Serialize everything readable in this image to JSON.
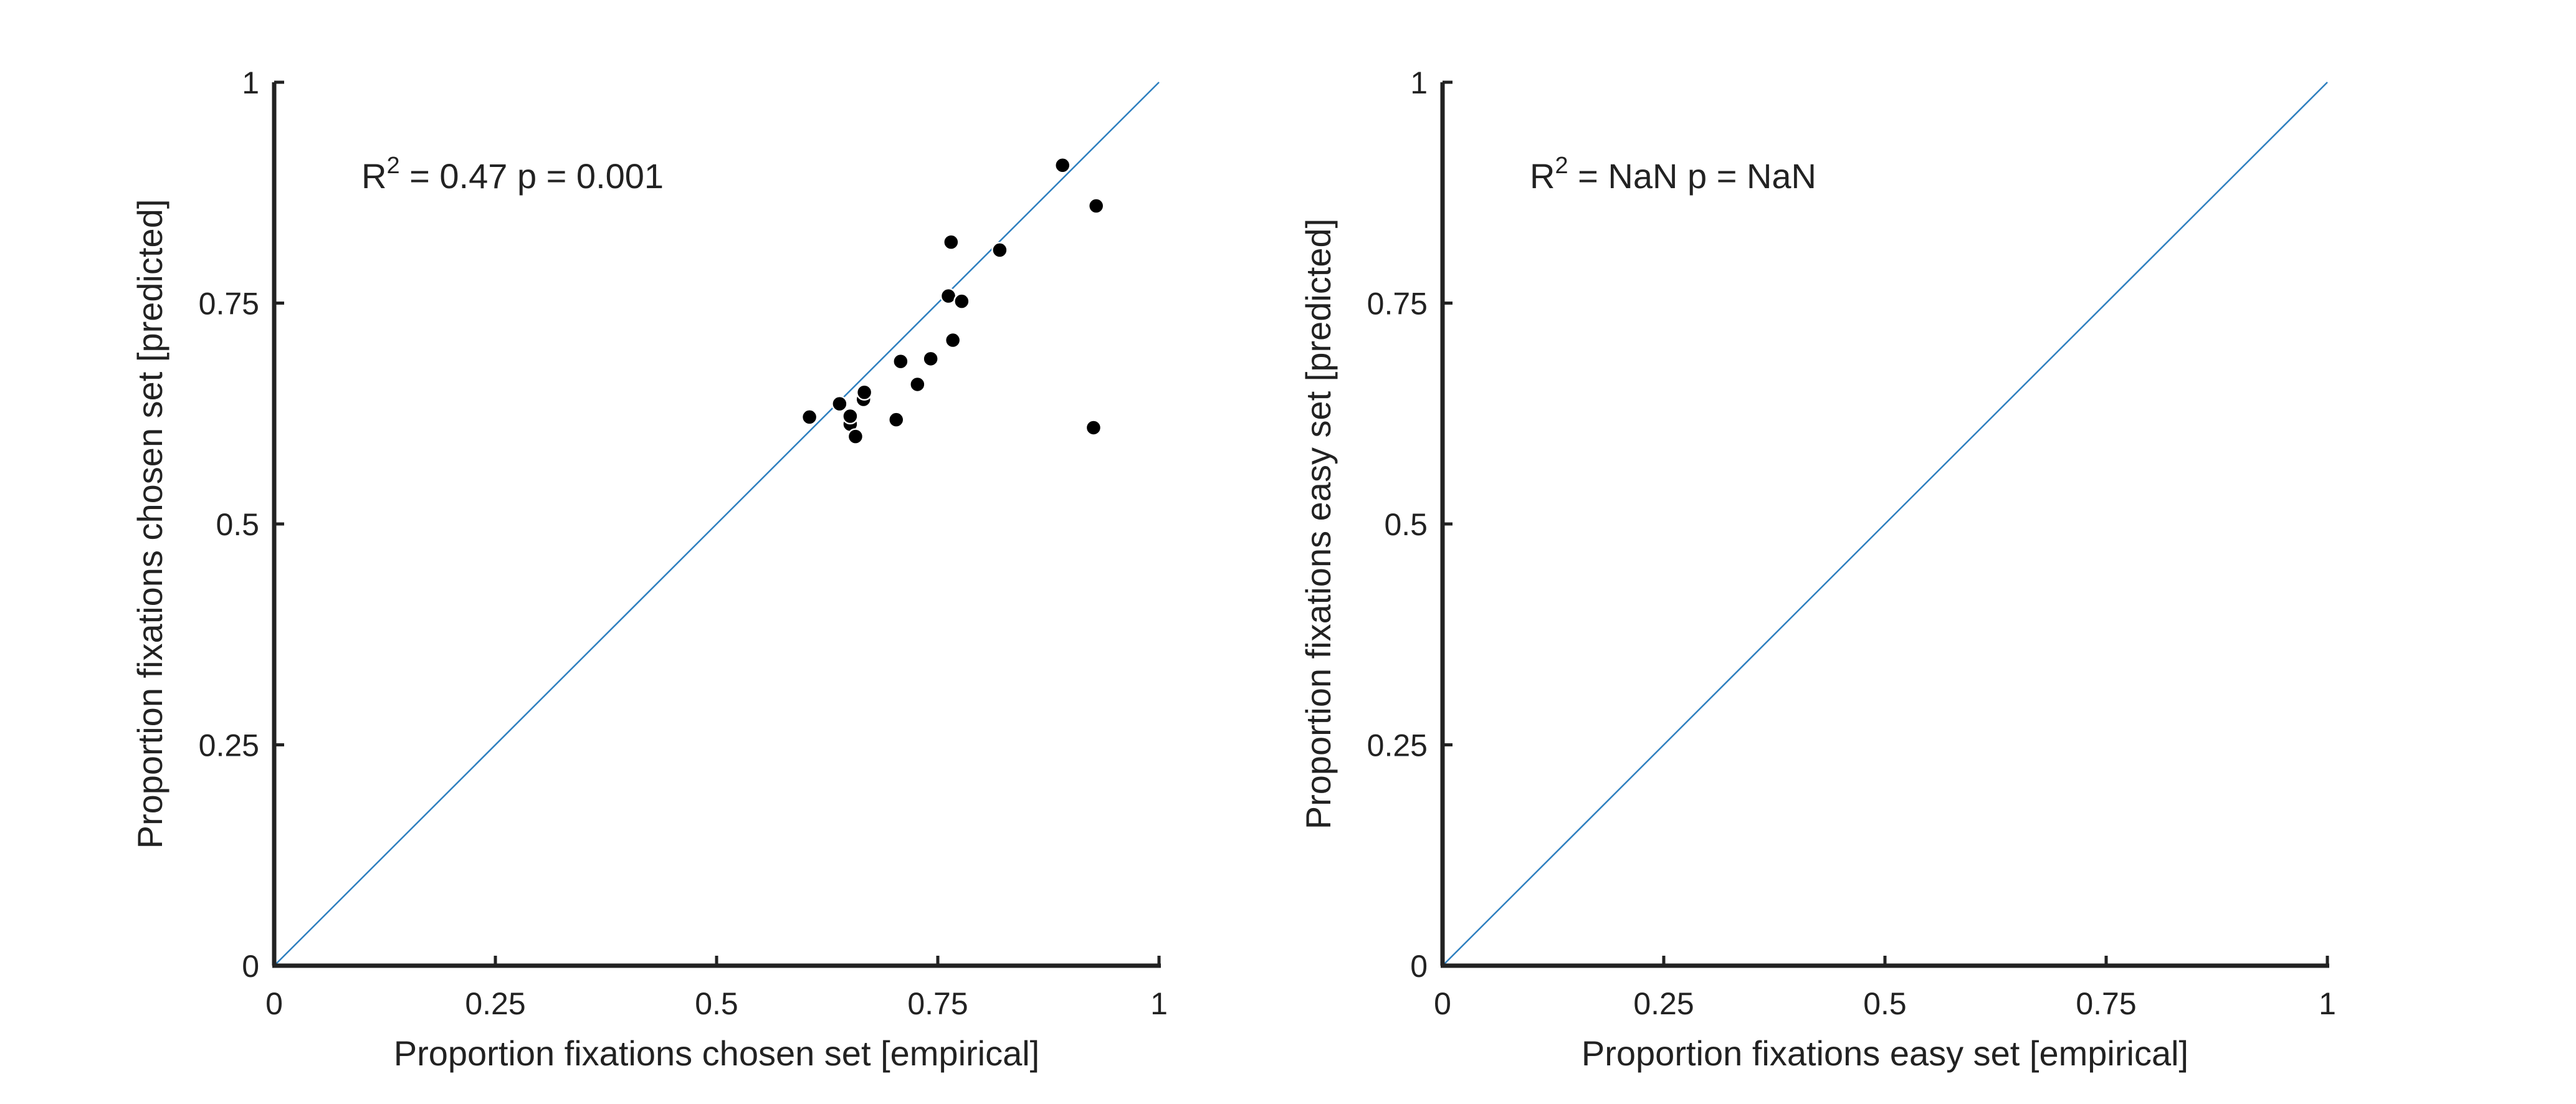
{
  "figure_colors": {
    "axis": "#222222",
    "identity_line": "#2e7fbf",
    "point": "#000000"
  },
  "chart_data": [
    {
      "type": "scatter",
      "title": "",
      "xlabel": "Proportion fixations chosen set [empirical]",
      "ylabel": "Proportion fixations chosen set [predicted]",
      "xlim": [
        0,
        1
      ],
      "ylim": [
        0,
        1
      ],
      "xticks": [
        0,
        0.25,
        0.5,
        0.75,
        1
      ],
      "yticks": [
        0,
        0.25,
        0.5,
        0.75,
        1
      ],
      "xtick_labels": [
        "0",
        "0.25",
        "0.5",
        "0.75",
        "1"
      ],
      "ytick_labels": [
        "0",
        "0.25",
        "0.5",
        "0.75",
        "1"
      ],
      "grid": false,
      "identity_line": true,
      "annotation": {
        "r2_prefix": "R",
        "r2_exp": "2",
        "rest": " = 0.47 p = 0.001"
      },
      "points": [
        {
          "x": 0.605,
          "y": 0.621
        },
        {
          "x": 0.639,
          "y": 0.636
        },
        {
          "x": 0.651,
          "y": 0.613
        },
        {
          "x": 0.651,
          "y": 0.622
        },
        {
          "x": 0.657,
          "y": 0.599
        },
        {
          "x": 0.666,
          "y": 0.641
        },
        {
          "x": 0.667,
          "y": 0.649
        },
        {
          "x": 0.703,
          "y": 0.618
        },
        {
          "x": 0.708,
          "y": 0.684
        },
        {
          "x": 0.727,
          "y": 0.658
        },
        {
          "x": 0.742,
          "y": 0.687
        },
        {
          "x": 0.762,
          "y": 0.758
        },
        {
          "x": 0.765,
          "y": 0.819
        },
        {
          "x": 0.767,
          "y": 0.708
        },
        {
          "x": 0.777,
          "y": 0.752
        },
        {
          "x": 0.82,
          "y": 0.81
        },
        {
          "x": 0.891,
          "y": 0.906
        },
        {
          "x": 0.926,
          "y": 0.609
        },
        {
          "x": 0.929,
          "y": 0.86
        }
      ]
    },
    {
      "type": "scatter",
      "title": "",
      "xlabel": "Proportion fixations easy set [empirical]",
      "ylabel": "Proportion fixations easy set [predicted]",
      "xlim": [
        0,
        1
      ],
      "ylim": [
        0,
        1
      ],
      "xticks": [
        0,
        0.25,
        0.5,
        0.75,
        1
      ],
      "yticks": [
        0,
        0.25,
        0.5,
        0.75,
        1
      ],
      "xtick_labels": [
        "0",
        "0.25",
        "0.5",
        "0.75",
        "1"
      ],
      "ytick_labels": [
        "0",
        "0.25",
        "0.5",
        "0.75",
        "1"
      ],
      "grid": false,
      "identity_line": true,
      "annotation": {
        "r2_prefix": "R",
        "r2_exp": "2",
        "rest": " = NaN p = NaN"
      },
      "points": []
    }
  ]
}
